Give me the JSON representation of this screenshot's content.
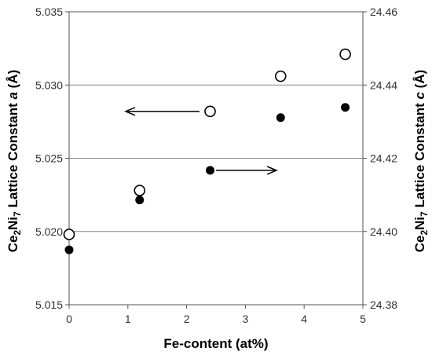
{
  "chart_data": {
    "type": "scatter",
    "title": "",
    "xlabel": "Fe-content (at%)",
    "ylabel_left": {
      "base": "Ce",
      "sub1": "2",
      "mid": "Ni",
      "sub2": "7",
      "rest": " Lattice Constant ",
      "var": "a",
      "unit": " (Å)"
    },
    "ylabel_right": {
      "base": "Ce",
      "sub1": "2",
      "mid": "Ni",
      "sub2": "7",
      "rest": " Lattice Constant ",
      "var": "c",
      "unit": " (Å)"
    },
    "xlim": [
      0,
      5
    ],
    "ylim_left": [
      5.015,
      5.035
    ],
    "ylim_right": [
      24.38,
      24.46
    ],
    "x_ticks": [
      "0",
      "1",
      "2",
      "3",
      "4",
      "5"
    ],
    "y_left_ticks": [
      "5.015",
      "5.020",
      "5.025",
      "5.030",
      "5.035"
    ],
    "y_right_ticks": [
      "24.38",
      "24.40",
      "24.42",
      "24.44",
      "24.46"
    ],
    "grid": "horizontal",
    "legend": "none",
    "series": [
      {
        "axis": "left",
        "marker": "open-circle",
        "x": [
          0,
          1.2,
          2.4,
          3.6,
          4.7
        ],
        "y": [
          5.0198,
          5.0228,
          5.0282,
          5.0306,
          5.0321
        ]
      },
      {
        "axis": "right",
        "marker": "filled-circle",
        "x": [
          0,
          1.2,
          2.4,
          3.6,
          4.7
        ],
        "y": [
          24.395,
          24.4086,
          24.4167,
          24.4311,
          24.4339
        ]
      }
    ],
    "annotations": [
      {
        "type": "arrow",
        "direction": "left",
        "points_to": "left-axis"
      },
      {
        "type": "arrow",
        "direction": "right",
        "points_to": "right-axis"
      }
    ]
  }
}
